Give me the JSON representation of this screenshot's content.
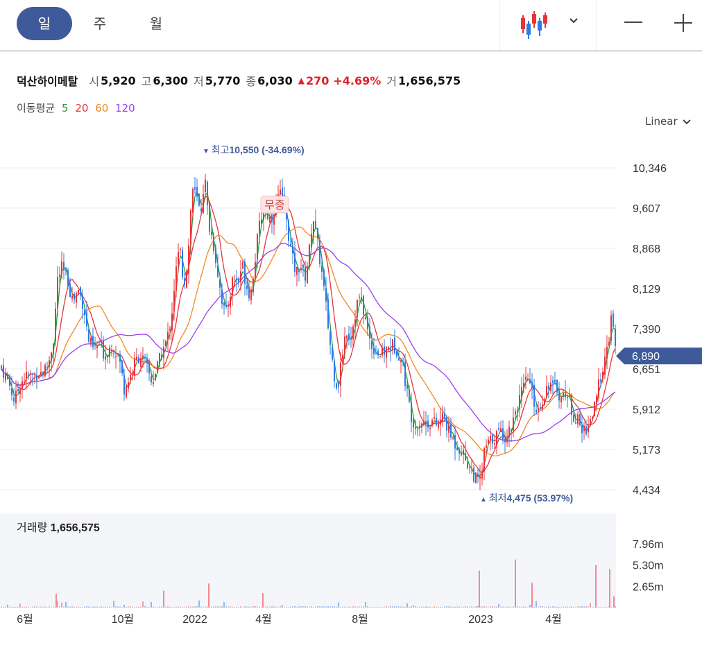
{
  "toolbar": {
    "period_tabs": [
      "일",
      "주",
      "월"
    ],
    "active_period": "일",
    "icons": [
      "candlestick-chart-icon",
      "chevron-down-icon",
      "minus-icon",
      "plus-icon"
    ]
  },
  "stock": {
    "name": "덕산하이메탈",
    "open_label": "시",
    "open": "5,920",
    "high_label": "고",
    "high": "6,300",
    "low_label": "저",
    "low": "5,770",
    "close_label": "종",
    "close": "6,030",
    "change_arrow": "▲",
    "change": "270",
    "change_pct": "+4.69%",
    "volume_label": "거",
    "volume": "1,656,575"
  },
  "moving_average": {
    "label": "이동평균",
    "periods": [
      "5",
      "20",
      "60",
      "120"
    ],
    "colors": [
      "#2e9e3a",
      "#e8333a",
      "#f08a22",
      "#9b3ef0"
    ]
  },
  "scale": {
    "label": "Linear"
  },
  "chart_data": {
    "type": "candlestick",
    "y_ticks": [
      "10,346",
      "9,607",
      "8,868",
      "8,129",
      "7,390",
      "6,651",
      "5,912",
      "5,173",
      "4,434"
    ],
    "y_tick_values": [
      10346,
      9607,
      8868,
      8129,
      7390,
      6651,
      5912,
      5173,
      4434
    ],
    "x_ticks": [
      "6월",
      "10월",
      "2022",
      "4월",
      "8월",
      "2023",
      "4월"
    ],
    "current_price_label": "6,890",
    "current_price": 6890,
    "high_marker": {
      "arrow": "▼",
      "label": "최고",
      "value": "10,550 (-34.69%)",
      "price": 10550
    },
    "low_marker": {
      "arrow": "▲",
      "label": "최저",
      "value": "4,475 (53.97%)",
      "price": 4475
    },
    "halt_badge": "무증",
    "volume": {
      "label": "거래량",
      "value": "1,656,575",
      "y_ticks": [
        "7.96m",
        "5.30m",
        "2.65m"
      ],
      "y_tick_values": [
        7.96,
        5.3,
        2.65
      ]
    },
    "price_path": [
      [
        0,
        6700
      ],
      [
        12,
        6400
      ],
      [
        20,
        6050
      ],
      [
        28,
        6400
      ],
      [
        36,
        6500
      ],
      [
        50,
        6550
      ],
      [
        60,
        6600
      ],
      [
        68,
        6700
      ],
      [
        76,
        7200
      ],
      [
        82,
        8300
      ],
      [
        88,
        8500
      ],
      [
        96,
        8300
      ],
      [
        104,
        7900
      ],
      [
        112,
        8100
      ],
      [
        120,
        7800
      ],
      [
        126,
        7200
      ],
      [
        134,
        7000
      ],
      [
        142,
        7100
      ],
      [
        150,
        6900
      ],
      [
        160,
        7100
      ],
      [
        170,
        6900
      ],
      [
        178,
        6300
      ],
      [
        186,
        6500
      ],
      [
        194,
        6800
      ],
      [
        202,
        6900
      ],
      [
        210,
        6700
      ],
      [
        218,
        6400
      ],
      [
        226,
        6700
      ],
      [
        234,
        7000
      ],
      [
        240,
        7200
      ],
      [
        246,
        7600
      ],
      [
        252,
        8400
      ],
      [
        258,
        8900
      ],
      [
        264,
        8200
      ],
      [
        270,
        8700
      ],
      [
        276,
        10000
      ],
      [
        282,
        9800
      ],
      [
        288,
        9500
      ],
      [
        294,
        10200
      ],
      [
        300,
        9300
      ],
      [
        306,
        9000
      ],
      [
        312,
        8500
      ],
      [
        318,
        8000
      ],
      [
        324,
        7600
      ],
      [
        330,
        8000
      ],
      [
        336,
        8400
      ],
      [
        342,
        8200
      ],
      [
        348,
        8600
      ],
      [
        354,
        8200
      ],
      [
        360,
        8000
      ],
      [
        366,
        8600
      ],
      [
        372,
        9200
      ],
      [
        378,
        9600
      ],
      [
        384,
        9500
      ],
      [
        390,
        9400
      ],
      [
        396,
        9700
      ],
      [
        402,
        9900
      ],
      [
        408,
        9600
      ],
      [
        414,
        9200
      ],
      [
        420,
        8700
      ],
      [
        426,
        8400
      ],
      [
        432,
        8600
      ],
      [
        438,
        8300
      ],
      [
        444,
        8700
      ],
      [
        450,
        9500
      ],
      [
        456,
        9000
      ],
      [
        462,
        8500
      ],
      [
        468,
        7900
      ],
      [
        474,
        7200
      ],
      [
        480,
        6600
      ],
      [
        486,
        6300
      ],
      [
        492,
        6900
      ],
      [
        498,
        7400
      ],
      [
        504,
        7200
      ],
      [
        510,
        7600
      ],
      [
        516,
        8000
      ],
      [
        522,
        7800
      ],
      [
        528,
        7400
      ],
      [
        534,
        7100
      ],
      [
        540,
        7000
      ],
      [
        548,
        6900
      ],
      [
        556,
        7000
      ],
      [
        564,
        7100
      ],
      [
        572,
        7000
      ],
      [
        580,
        6700
      ],
      [
        586,
        6200
      ],
      [
        592,
        5800
      ],
      [
        598,
        5600
      ],
      [
        606,
        5700
      ],
      [
        614,
        5650
      ],
      [
        622,
        5700
      ],
      [
        630,
        5600
      ],
      [
        638,
        5800
      ],
      [
        646,
        5500
      ],
      [
        654,
        5300
      ],
      [
        662,
        5200
      ],
      [
        670,
        5000
      ],
      [
        678,
        4800
      ],
      [
        686,
        4600
      ],
      [
        692,
        4600
      ],
      [
        698,
        5200
      ],
      [
        704,
        5300
      ],
      [
        712,
        5400
      ],
      [
        720,
        5500
      ],
      [
        728,
        5400
      ],
      [
        736,
        5600
      ],
      [
        742,
        5900
      ],
      [
        748,
        6100
      ],
      [
        754,
        6300
      ],
      [
        760,
        6500
      ],
      [
        766,
        6200
      ],
      [
        772,
        5900
      ],
      [
        778,
        6000
      ],
      [
        784,
        6200
      ],
      [
        790,
        6400
      ],
      [
        796,
        6300
      ],
      [
        802,
        6300
      ],
      [
        808,
        6100
      ],
      [
        814,
        6250
      ],
      [
        820,
        6050
      ],
      [
        826,
        5800
      ],
      [
        832,
        5700
      ],
      [
        838,
        5500
      ],
      [
        846,
        5600
      ],
      [
        852,
        5800
      ],
      [
        858,
        6000
      ],
      [
        864,
        6500
      ],
      [
        870,
        6800
      ],
      [
        876,
        7000
      ],
      [
        880,
        7700
      ],
      [
        884,
        7200
      ],
      [
        888,
        6890
      ]
    ]
  }
}
